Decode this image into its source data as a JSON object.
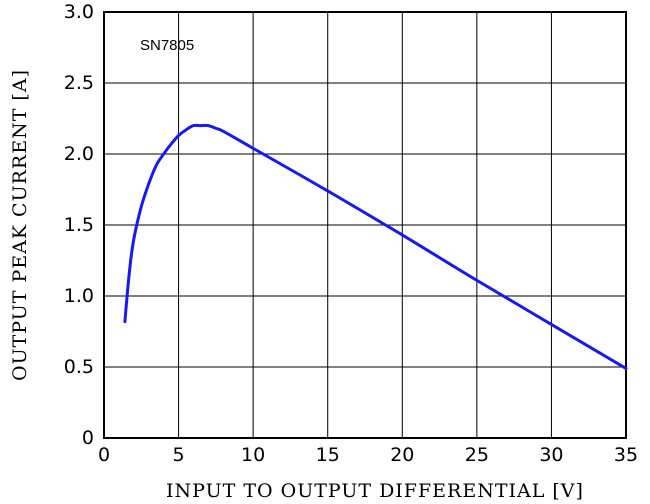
{
  "chart_data": {
    "type": "line",
    "title": "",
    "xlabel": "INPUT TO OUTPUT DIFFERENTIAL [V]",
    "ylabel": "OUTPUT PEAK CURRENT [A]",
    "xlim": [
      0,
      35
    ],
    "ylim": [
      0,
      3.0
    ],
    "xticks": [
      0,
      5,
      10,
      15,
      20,
      25,
      30,
      35
    ],
    "yticks": [
      0,
      0.5,
      1.0,
      1.5,
      2.0,
      2.5,
      3.0
    ],
    "xtick_labels": [
      "0",
      "5",
      "10",
      "15",
      "20",
      "25",
      "30",
      "35"
    ],
    "ytick_labels": [
      "0",
      "0.5",
      "1.0",
      "1.5",
      "2.0",
      "2.5",
      "3.0"
    ],
    "grid": true,
    "annotations": [
      "SN7805"
    ],
    "series": [
      {
        "color": "#1a1ae6",
        "x": [
          1.4,
          1.7,
          2.0,
          2.5,
          3.0,
          3.5,
          4.0,
          4.5,
          5.0,
          5.5,
          6.0,
          6.5,
          7.0,
          7.5,
          8.0,
          10,
          15,
          20,
          25,
          30,
          35
        ],
        "y": [
          0.82,
          1.17,
          1.4,
          1.63,
          1.79,
          1.92,
          2.0,
          2.07,
          2.13,
          2.17,
          2.2,
          2.2,
          2.2,
          2.18,
          2.16,
          2.04,
          1.74,
          1.43,
          1.11,
          0.8,
          0.49
        ]
      }
    ]
  }
}
